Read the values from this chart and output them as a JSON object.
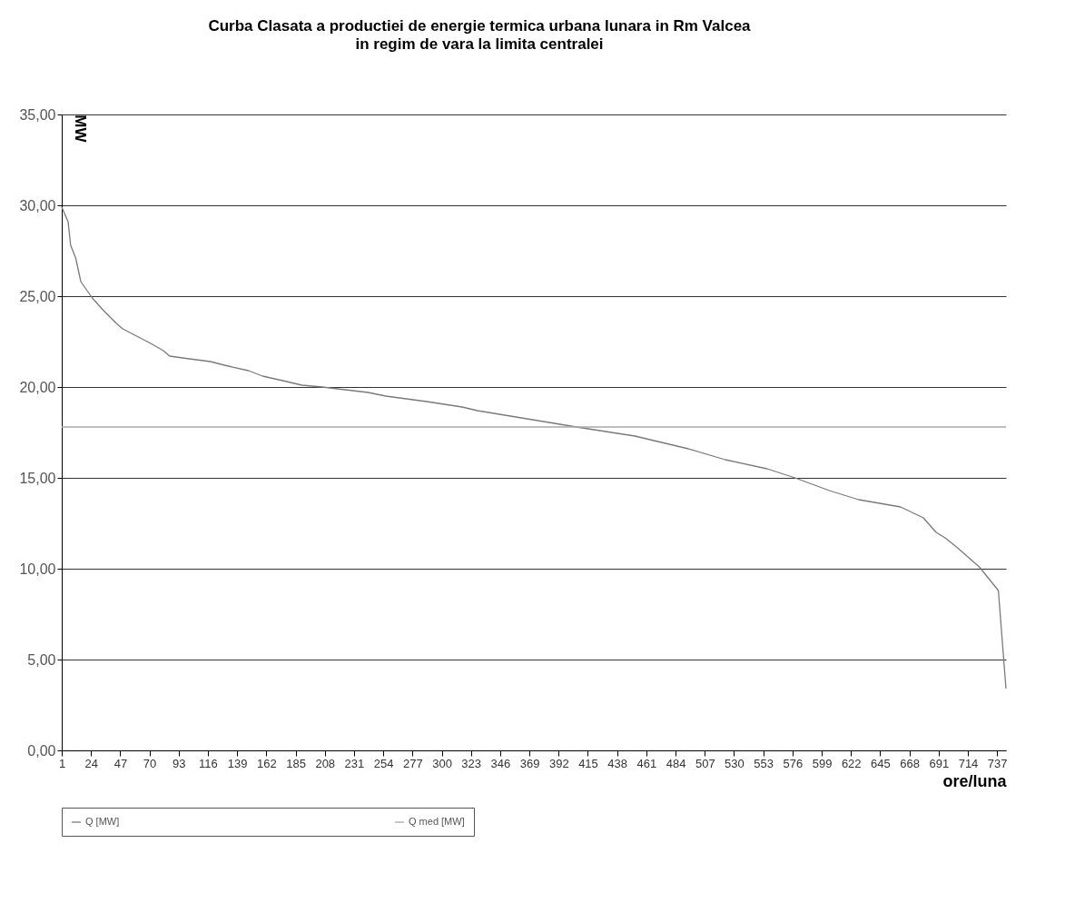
{
  "chart_data": {
    "type": "line",
    "title": "Curba Clasata a productiei de energie termica urbana lunara in Rm Valcea",
    "subtitle": "in regim de vara la limita centralei",
    "xlabel": "ore/luna",
    "ylabel": "MW",
    "xlim": [
      1,
      744
    ],
    "xticks": [
      1,
      24,
      47,
      70,
      93,
      116,
      139,
      162,
      185,
      208,
      231,
      254,
      277,
      300,
      323,
      346,
      369,
      392,
      415,
      438,
      461,
      484,
      507,
      530,
      553,
      576,
      599,
      622,
      645,
      668,
      691,
      714,
      737
    ],
    "ylim": [
      0,
      35
    ],
    "yticks": [
      {
        "value": 0,
        "label": "0,00"
      },
      {
        "value": 5,
        "label": "5,00"
      },
      {
        "value": 10,
        "label": "10,00"
      },
      {
        "value": 15,
        "label": "15,00"
      },
      {
        "value": 20,
        "label": "20,00"
      },
      {
        "value": 25,
        "label": "25,00"
      },
      {
        "value": 30,
        "label": "30,00"
      },
      {
        "value": 35,
        "label": "35,00"
      }
    ],
    "grid": "y",
    "legend": "bottom",
    "line_style": "solid",
    "marker": "none",
    "series": [
      {
        "name": "Q [MW]",
        "color": "#7a7a7a",
        "x": [
          1,
          6,
          8,
          12,
          16,
          25,
          34,
          44,
          49,
          60,
          71,
          81,
          86,
          96,
          118,
          129,
          148,
          159,
          178,
          190,
          206,
          242,
          256,
          288,
          316,
          328,
          406,
          452,
          494,
          523,
          556,
          578,
          605,
          628,
          661,
          679,
          689,
          696,
          705,
          723,
          738,
          744
        ],
        "values": [
          29.9,
          29.1,
          27.8,
          27.1,
          25.8,
          24.9,
          24.2,
          23.5,
          23.2,
          22.8,
          22.4,
          22.0,
          21.7,
          21.6,
          21.4,
          21.2,
          20.9,
          20.6,
          20.3,
          20.1,
          20.0,
          19.7,
          19.5,
          19.2,
          18.9,
          18.7,
          17.8,
          17.3,
          16.6,
          16.0,
          15.5,
          15.0,
          14.3,
          13.8,
          13.4,
          12.8,
          12.0,
          11.7,
          11.2,
          10.1,
          8.8,
          3.4
        ]
      },
      {
        "name": "Q med [MW]",
        "color": "#a8a8a8",
        "x": [
          1,
          744
        ],
        "values": [
          17.8,
          17.8
        ]
      }
    ]
  }
}
